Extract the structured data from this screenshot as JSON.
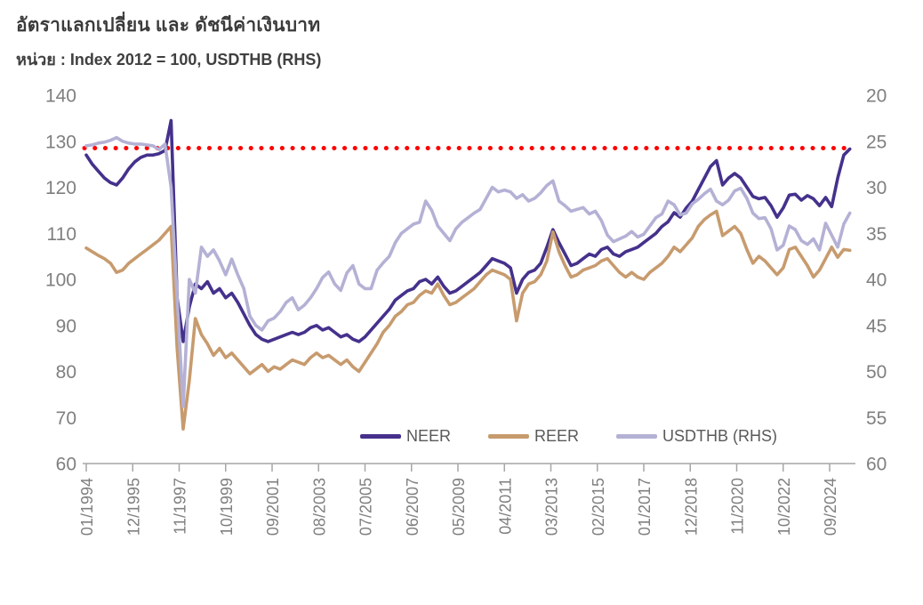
{
  "header": {
    "title": "อัตราแลกเปลี่ยน และ ดัชนีค่าเงินบาท",
    "subtitle": "หน่วย : Index 2012 = 100, USDTHB (RHS)"
  },
  "colors": {
    "background": "#FFFFFF",
    "title_text": "#3B3B3B",
    "axis_text": "#7F7F7F",
    "axis_line": "#A6A6A6",
    "legend_text": "#595959",
    "reference_line": "#FF0000",
    "neer": "#45318C",
    "reer": "#C79B6E",
    "usdthb": "#B4B1D5"
  },
  "chart_data": {
    "type": "line",
    "title": "อัตราแลกเปลี่ยน และ ดัชนีค่าเงินบาท",
    "subtitle": "หน่วย : Index 2012 = 100, USDTHB (RHS)",
    "grid": false,
    "x_start": "01/1994",
    "x_end": "2025",
    "sample_interval_months": 3,
    "x_tick_interval_months": 23,
    "x_tick_labels": [
      "01/1994",
      "12/1995",
      "11/1997",
      "10/1999",
      "09/2001",
      "08/2003",
      "07/2005",
      "06/2007",
      "05/2009",
      "04/2011",
      "03/2013",
      "02/2015",
      "01/2017",
      "12/2018",
      "11/2020",
      "10/2022",
      "09/2024"
    ],
    "left_axis": {
      "ticks": [
        140,
        130,
        120,
        110,
        100,
        90,
        80,
        70,
        60
      ],
      "min": 60,
      "max": 140,
      "inverted": false
    },
    "right_axis": {
      "ticks": [
        20,
        25,
        30,
        35,
        40,
        45,
        50,
        55,
        60
      ],
      "min": 20,
      "max": 60,
      "inverted": true
    },
    "reference_line": {
      "axis": "left",
      "value": 128.5,
      "rhs_equivalent": 25.75,
      "color": "#FF0000",
      "style": "dotted"
    },
    "legend": {
      "position": "bottom-inside",
      "entries": [
        "NEER",
        "REER",
        "USDTHB (RHS)"
      ]
    },
    "series": [
      {
        "name": "NEER",
        "axis": "left",
        "color": "#45318C",
        "values": [
          127,
          125,
          123.5,
          122,
          121,
          120.5,
          122,
          124,
          125.5,
          126.5,
          127,
          127,
          127.3,
          128,
          134.5,
          96,
          86.5,
          94,
          99,
          98,
          99.5,
          97,
          98,
          96,
          97,
          95,
          92.5,
          90,
          88,
          87,
          86.5,
          87,
          87.5,
          88,
          88.5,
          88,
          88.5,
          89.5,
          90,
          89,
          89.5,
          88.5,
          87.5,
          88,
          87,
          86.5,
          87.5,
          89,
          90.5,
          92,
          93.5,
          95.5,
          96.5,
          97.5,
          98,
          99.5,
          100,
          99,
          100.5,
          98.5,
          97,
          97.5,
          98.5,
          99.5,
          100.5,
          101.5,
          103,
          104.5,
          104,
          103.5,
          102.5,
          97,
          100,
          101.5,
          102,
          103.5,
          107,
          110.8,
          108,
          105.5,
          103,
          103.5,
          104.5,
          105.5,
          105,
          106.5,
          107,
          105.5,
          105,
          106,
          106.5,
          107,
          108,
          109,
          110,
          111.5,
          112.5,
          114.5,
          113.5,
          115.5,
          117,
          119.5,
          122,
          124.5,
          125.8,
          120.5,
          122,
          123,
          122,
          120,
          118,
          117.5,
          117.8,
          116,
          113.5,
          115.5,
          118.3,
          118.5,
          117.2,
          118.2,
          117.5,
          116,
          117.8,
          115.8,
          122,
          127,
          128.3
        ]
      },
      {
        "name": "REER",
        "axis": "left",
        "color": "#C79B6E",
        "values": [
          106.8,
          106,
          105.2,
          104.5,
          103.5,
          101.5,
          102,
          103.5,
          104.5,
          105.5,
          106.5,
          107.5,
          108.5,
          110,
          111.5,
          85,
          67.5,
          78,
          91.5,
          88,
          86,
          83.5,
          85,
          83,
          84,
          82.5,
          81,
          79.5,
          80.5,
          81.5,
          80,
          81,
          80.5,
          81.5,
          82.5,
          82,
          81.5,
          83,
          84,
          83,
          83.5,
          82.5,
          81.5,
          82.5,
          81,
          80,
          82,
          84,
          86,
          88.5,
          90,
          92,
          93,
          94.5,
          95,
          96.5,
          97.5,
          97,
          99,
          96.5,
          94.5,
          95,
          96,
          97,
          98,
          99.5,
          101,
          102,
          101.5,
          101,
          100,
          91,
          97,
          99,
          99.5,
          101,
          104,
          110.3,
          106,
          103,
          100.5,
          101,
          102,
          102.5,
          103,
          104,
          104.5,
          103,
          101.5,
          100.5,
          101.5,
          100.5,
          100,
          101.5,
          102.5,
          103.5,
          105,
          107,
          106,
          107.5,
          109,
          111.5,
          113,
          114,
          114.8,
          109.5,
          110.5,
          111.5,
          110,
          106.5,
          103.5,
          105,
          104,
          102.5,
          101,
          102.5,
          106.5,
          107,
          105,
          103,
          100.5,
          102,
          104.5,
          107,
          104.8,
          106.5,
          106.3
        ]
      },
      {
        "name": "USDTHB (RHS)",
        "axis": "right",
        "color": "#B4B1D5",
        "values": [
          25.5,
          25.4,
          25.2,
          25.1,
          24.9,
          24.6,
          25,
          25.2,
          25.3,
          25.3,
          25.4,
          25.5,
          25.9,
          25.3,
          30,
          42,
          53.8,
          40,
          41.5,
          36.5,
          37.5,
          36.8,
          38,
          39.5,
          37.8,
          39.5,
          41,
          44,
          45,
          45.5,
          44.5,
          44.2,
          43.5,
          42.5,
          42,
          43.3,
          42.8,
          42,
          41,
          39.8,
          39.2,
          40.5,
          41.2,
          39.3,
          38.5,
          40.5,
          41,
          41,
          39,
          38.2,
          37.5,
          36,
          35,
          34.5,
          34,
          33.8,
          31.5,
          32.5,
          34.2,
          35,
          35.8,
          34.5,
          33.8,
          33.3,
          32.8,
          32.4,
          31.2,
          30,
          30.5,
          30.3,
          30.5,
          31.2,
          30.8,
          31.5,
          31.2,
          30.6,
          29.8,
          29.3,
          31.5,
          32,
          32.6,
          32.4,
          32.2,
          32.9,
          32.6,
          33.6,
          35.2,
          35.9,
          35.6,
          35.3,
          34.8,
          35.4,
          35.1,
          34.2,
          33.3,
          32.9,
          31.5,
          31.9,
          33,
          32.8,
          31.8,
          31.3,
          30.7,
          30.2,
          31.5,
          31.9,
          31.4,
          30.4,
          30.1,
          31.2,
          32.8,
          33.4,
          33.3,
          34.5,
          36.8,
          36.3,
          34.2,
          34.6,
          35.8,
          36.2,
          35.6,
          36.8,
          33.9,
          35.2,
          36.5,
          34,
          32.8
        ]
      }
    ]
  }
}
